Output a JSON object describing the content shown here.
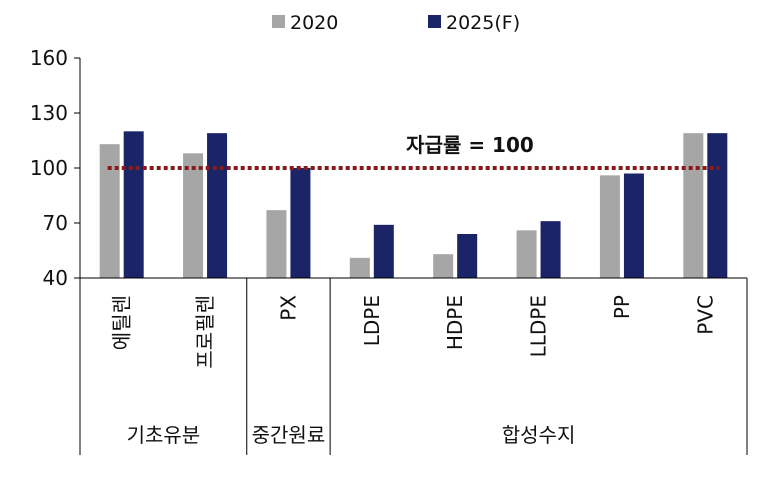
{
  "chart_data": {
    "type": "bar",
    "categories": [
      "에틸렌",
      "프로필렌",
      "PX",
      "LDPE",
      "HDPE",
      "LLDPE",
      "PP",
      "PVC"
    ],
    "groups": [
      {
        "label": "기초유분",
        "categories": [
          "에틸렌",
          "프로필렌"
        ]
      },
      {
        "label": "중간원료",
        "categories": [
          "PX"
        ]
      },
      {
        "label": "합성수지",
        "categories": [
          "LDPE",
          "HDPE",
          "LLDPE",
          "PP",
          "PVC"
        ]
      }
    ],
    "series": [
      {
        "name": "2020",
        "color": "#a6a6a6",
        "values": [
          113,
          108,
          77,
          51,
          53,
          66,
          96,
          119
        ]
      },
      {
        "name": "2025(F)",
        "color": "#1a2466",
        "values": [
          120,
          119,
          100,
          69,
          64,
          71,
          97,
          119
        ]
      }
    ],
    "ylim": [
      40,
      160
    ],
    "yticks": [
      40,
      70,
      100,
      130,
      160
    ],
    "reference_line": {
      "value": 100,
      "label": "자급률 = 100",
      "color": "#8b1a1a"
    },
    "legend_position": "top",
    "grid": false
  }
}
